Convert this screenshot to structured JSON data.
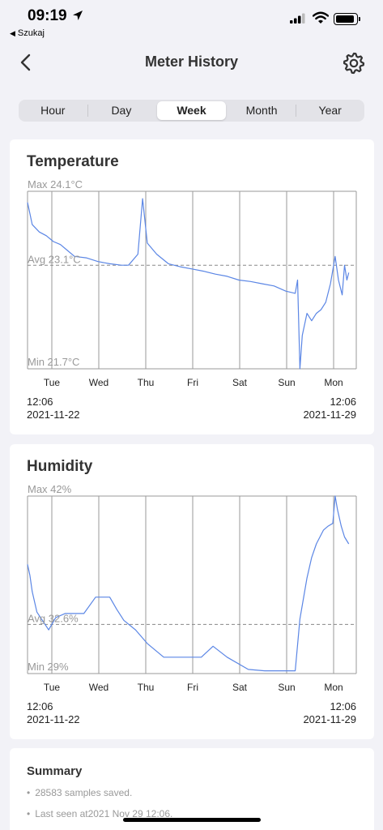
{
  "status_bar": {
    "time": "09:19",
    "back_app": "Szukaj",
    "icons": [
      "location-arrow-icon",
      "cellular-signal-icon",
      "wifi-icon",
      "battery-icon"
    ]
  },
  "nav": {
    "title": "Meter History",
    "back_icon": "chevron-left-icon",
    "settings_icon": "gear-icon"
  },
  "tabs": [
    {
      "label": "Hour",
      "active": false
    },
    {
      "label": "Day",
      "active": false
    },
    {
      "label": "Week",
      "active": true
    },
    {
      "label": "Month",
      "active": false
    },
    {
      "label": "Year",
      "active": false
    }
  ],
  "days": [
    "Tue",
    "Wed",
    "Thu",
    "Fri",
    "Sat",
    "Sun",
    "Mon"
  ],
  "range": {
    "start_time": "12:06",
    "start_date": "2021-11-22",
    "end_time": "12:06",
    "end_date": "2021-11-29"
  },
  "colors": {
    "line": "#5b86e5",
    "grid": "#9a9a9a",
    "avg_line": "#888888"
  },
  "chart_data": [
    {
      "type": "line",
      "title": "Temperature",
      "max_label": "Max 24.1°C",
      "avg_label": "Avg 23.1°C",
      "min_label": "Min 21.7°C",
      "ylim": [
        21.7,
        24.1
      ],
      "avg": 23.1,
      "x": [
        0,
        0.05,
        0.1,
        0.25,
        0.4,
        0.55,
        0.7,
        0.85,
        1.0,
        1.25,
        1.5,
        1.75,
        2.0,
        2.15,
        2.35,
        2.45,
        2.55,
        2.75,
        3.0,
        3.25,
        3.5,
        3.75,
        4.0,
        4.25,
        4.5,
        4.75,
        5.0,
        5.25,
        5.5,
        5.7,
        5.75,
        5.8,
        5.85,
        5.95,
        6.05,
        6.15,
        6.25,
        6.35,
        6.45,
        6.55,
        6.62,
        6.7,
        6.75,
        6.8,
        6.84
      ],
      "y": [
        23.95,
        23.8,
        23.65,
        23.55,
        23.5,
        23.42,
        23.38,
        23.3,
        23.22,
        23.2,
        23.15,
        23.12,
        23.1,
        23.1,
        23.25,
        24.0,
        23.4,
        23.25,
        23.12,
        23.08,
        23.05,
        23.02,
        22.98,
        22.95,
        22.9,
        22.88,
        22.85,
        22.82,
        22.75,
        22.72,
        22.9,
        21.7,
        22.15,
        22.45,
        22.35,
        22.45,
        22.5,
        22.6,
        22.85,
        23.22,
        22.9,
        22.7,
        23.1,
        22.9,
        23.0
      ]
    },
    {
      "type": "line",
      "title": "Humidity",
      "max_label": "Max 42%",
      "avg_label": "Avg 32.6%",
      "min_label": "Min 29%",
      "ylim": [
        29,
        42
      ],
      "avg": 32.6,
      "x": [
        0,
        0.05,
        0.1,
        0.2,
        0.45,
        0.6,
        0.8,
        1.0,
        1.2,
        1.45,
        1.75,
        1.9,
        2.05,
        2.3,
        2.55,
        2.9,
        3.25,
        3.7,
        3.95,
        4.25,
        4.7,
        5.05,
        5.4,
        5.7,
        5.8,
        5.95,
        6.05,
        6.15,
        6.3,
        6.4,
        6.5,
        6.55,
        6.6,
        6.68,
        6.75,
        6.84
      ],
      "y": [
        37.0,
        36.2,
        35.0,
        33.5,
        32.2,
        33.1,
        33.4,
        33.4,
        33.4,
        34.6,
        34.6,
        33.7,
        32.9,
        32.2,
        31.2,
        30.2,
        30.2,
        30.2,
        31.0,
        30.2,
        29.3,
        29.2,
        29.2,
        29.2,
        33.0,
        36.0,
        37.5,
        38.5,
        39.5,
        39.8,
        40.0,
        42.0,
        41.0,
        39.8,
        39.0,
        38.5
      ]
    }
  ],
  "summary": {
    "title": "Summary",
    "items": [
      "28583 samples saved.",
      "Last seen at2021 Nov 29 12:06."
    ]
  }
}
